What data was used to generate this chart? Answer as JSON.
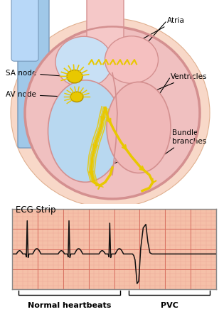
{
  "fig_width": 3.15,
  "fig_height": 4.63,
  "dpi": 100,
  "bg_color": "#ffffff",
  "ecg_bg_color": "#f5c0a8",
  "ecg_grid_major_color": "#d87060",
  "ecg_grid_minor_color": "#eeaa98",
  "ecg_line_color": "#111111",
  "ecg_title": "ECG Strip",
  "ecg_label_normal": "Normal heartbeats",
  "ecg_label_pvc": "PVC",
  "annotation_atria": "Atria",
  "annotation_ventricles": "Ventricles",
  "annotation_sa_node": "SA node",
  "annotation_av_node": "AV node",
  "annotation_bundle": "Bundle\nbranches",
  "body_text_fontsize": 7.5,
  "ecg_title_fontsize": 8.5,
  "label_fontsize": 8,
  "heart_pink_outer": "#f0c0c0",
  "heart_pink_mid": "#f5b0b0",
  "heart_blue_chamber": "#b8d8f0",
  "heart_pink_chamber": "#f0c0c0",
  "heart_border": "#d49090",
  "yellow_conduct": "#e8c800",
  "aorta_blue": "#a0c8e8",
  "aorta_blue2": "#b8d8f8",
  "skin_color": "#f8d8c8"
}
